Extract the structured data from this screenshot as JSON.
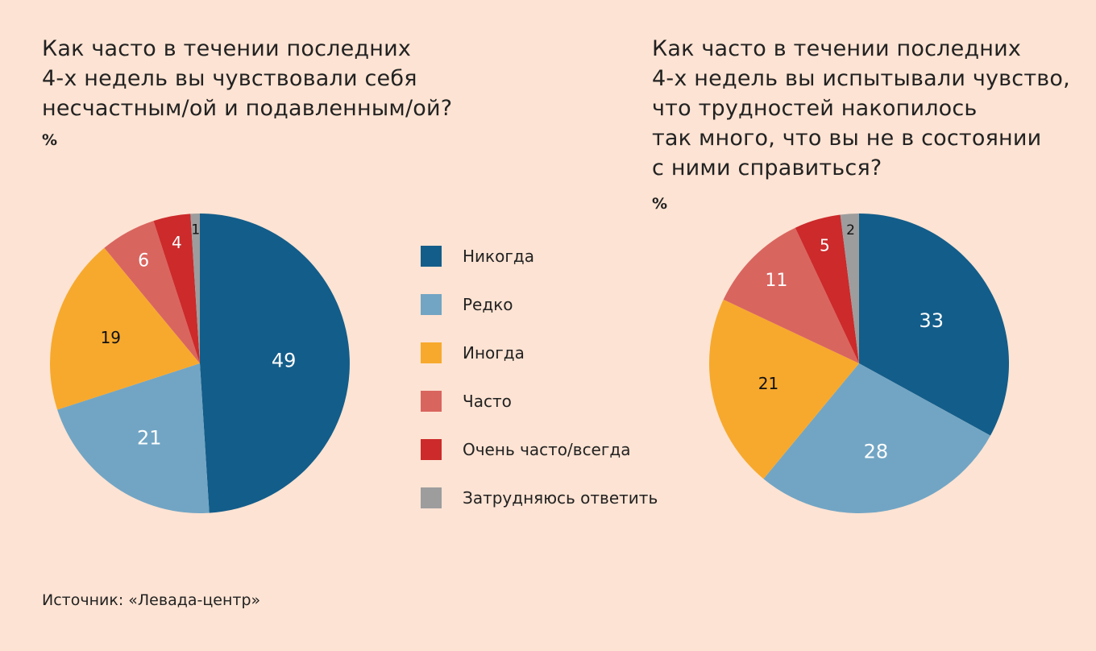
{
  "chart_data": [
    {
      "type": "pie",
      "title": "Как часто в течении последних\n4-х недель вы чувствовали себя\nнесчастным/ой и подавленным/ой?",
      "unit": "%",
      "categories": [
        "Никогда",
        "Редко",
        "Иногда",
        "Часто",
        "Очень часто/всегда",
        "Затрудняюсь ответить"
      ],
      "values": [
        49,
        21,
        19,
        6,
        4,
        1
      ]
    },
    {
      "type": "pie",
      "title": "Как часто в течении последних\n4-х недель вы испытывали чувство,\nчто трудностей накопилось\nтак много, что вы не в состоянии\nс ними справиться?",
      "unit": "%",
      "categories": [
        "Никогда",
        "Редко",
        "Иногда",
        "Часто",
        "Очень часто/всегда",
        "Затрудняюсь ответить"
      ],
      "values": [
        33,
        28,
        21,
        11,
        5,
        2
      ]
    }
  ],
  "legend": {
    "placement": "center",
    "items": [
      {
        "label": "Никогда",
        "color": "#135d8a"
      },
      {
        "label": "Редко",
        "color": "#72a5c4"
      },
      {
        "label": "Иногда",
        "color": "#f7a92d"
      },
      {
        "label": "Часто",
        "color": "#d9655f"
      },
      {
        "label": "Очень часто/всегда",
        "color": "#cc2a2b"
      },
      {
        "label": "Затрудняюсь ответить",
        "color": "#9d9d9d"
      }
    ]
  },
  "label_colors": [
    "#ffffff",
    "#ffffff",
    "#111111",
    "#ffffff",
    "#ffffff",
    "#111111"
  ],
  "source": "Источник: «Левада-центр»"
}
